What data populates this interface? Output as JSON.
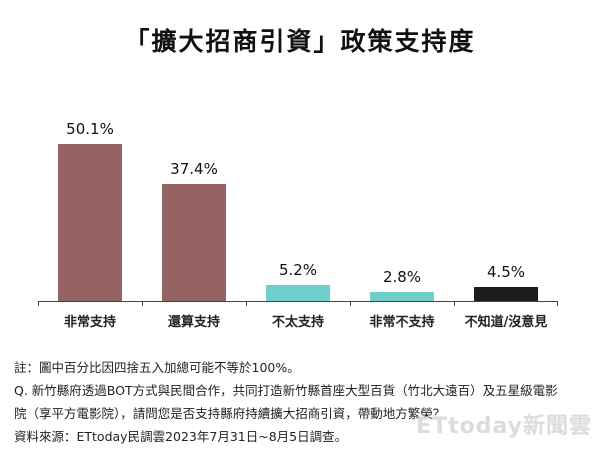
{
  "title": "「擴大招商引資」政策支持度",
  "chart_data": {
    "type": "bar",
    "title": "「擴大招商引資」政策支持度",
    "categories": [
      "非常支持",
      "還算支持",
      "不太支持",
      "非常不支持",
      "不知道/沒意見"
    ],
    "values": [
      50.1,
      37.4,
      5.2,
      2.8,
      4.5
    ],
    "value_labels": [
      "50.1%",
      "37.4%",
      "5.2%",
      "2.8%",
      "4.5%"
    ],
    "colors": [
      "#956462",
      "#956462",
      "#6ecfcb",
      "#6ecfcb",
      "#1c1c1c"
    ],
    "xlabel": "",
    "ylabel": "",
    "ylim": [
      0,
      55
    ],
    "grid": false,
    "legend": "none"
  },
  "notes": {
    "note": "註：圖中百分比因四捨五入加總可能不等於100%。",
    "question_line1": "Q. 新竹縣府透過BOT方式與民間合作，共同打造新竹縣首座大型百貨（竹北大遠百）及五星級電影",
    "question_line2": "院（享平方電影院），請問您是否支持縣府持續擴大招商引資，帶動地方繁榮？",
    "source": "資料來源：ETtoday民調雲2023年7月31日~8月5日調查。"
  },
  "watermark": "ETtoday新聞雲"
}
